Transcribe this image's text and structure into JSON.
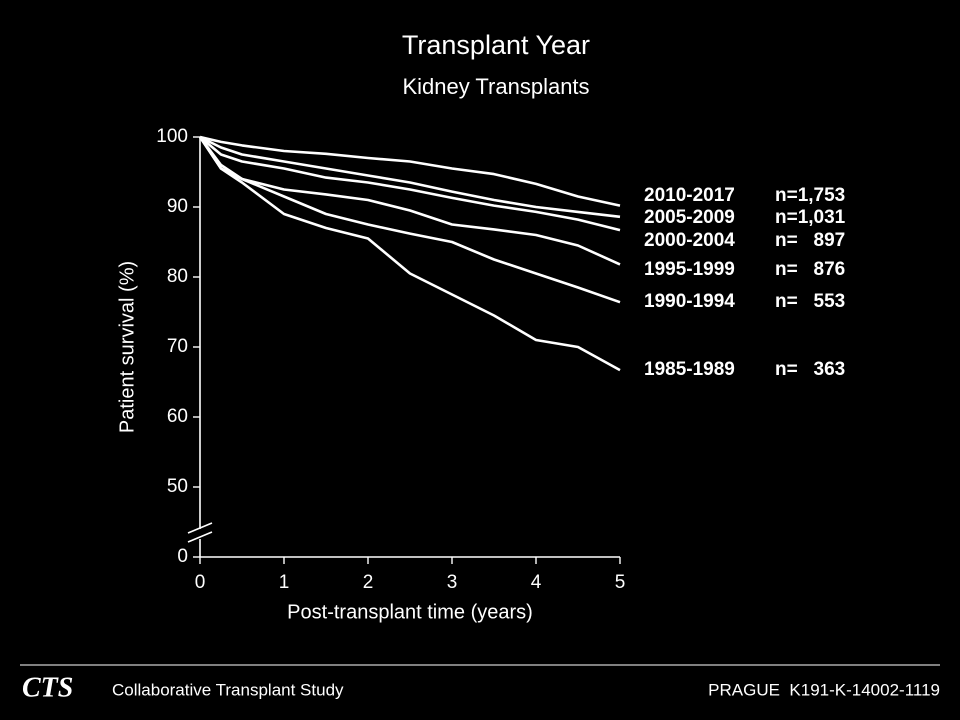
{
  "chart_data": {
    "type": "line",
    "title": "Transplant Year",
    "subtitle": "Kidney Transplants",
    "ylabel": "Patient survival (%)",
    "xlabel": "Post-transplant time (years)",
    "x": [
      0,
      0.25,
      0.5,
      1,
      1.5,
      2,
      2.5,
      3,
      3.5,
      4,
      4.5,
      5
    ],
    "xlim": [
      0,
      5
    ],
    "xticks": [
      0,
      1,
      2,
      3,
      4,
      5
    ],
    "ylim": [
      0,
      100
    ],
    "yticks": [
      0,
      50,
      60,
      70,
      80,
      90,
      100
    ],
    "ybreak": [
      0,
      50
    ],
    "series": [
      {
        "name": "2010-2017",
        "n": "n=1,753",
        "color": "#ffffff",
        "values": [
          100,
          99.3,
          98.8,
          98,
          97.6,
          97,
          96.5,
          95.5,
          94.7,
          93.3,
          91.5,
          90.2
        ]
      },
      {
        "name": "2005-2009",
        "n": "n=1,031",
        "color": "#ffffff",
        "values": [
          100,
          98.5,
          97.5,
          96.5,
          95.5,
          94.5,
          93.5,
          92.2,
          91,
          90,
          89.3,
          88.6
        ]
      },
      {
        "name": "2000-2004",
        "n": "n=   897",
        "color": "#ffffff",
        "values": [
          100,
          97.5,
          96.5,
          95.5,
          94.2,
          93.5,
          92.5,
          91.3,
          90.2,
          89.3,
          88.2,
          86.7
        ]
      },
      {
        "name": "1995-1999",
        "n": "n=   876",
        "color": "#ffffff",
        "values": [
          100,
          96,
          94,
          92.5,
          91.8,
          91,
          89.5,
          87.5,
          86.8,
          86,
          84.5,
          81.8
        ]
      },
      {
        "name": "1990-1994",
        "n": "n=   553",
        "color": "#ffffff",
        "values": [
          100,
          95.5,
          94,
          91.5,
          89,
          87.5,
          86.2,
          85,
          82.5,
          80.5,
          78.5,
          76.4
        ]
      },
      {
        "name": "1985-1989",
        "n": "n=   363",
        "color": "#ffffff",
        "values": [
          100,
          95.5,
          93.5,
          89,
          87,
          85.5,
          80.5,
          77.5,
          74.5,
          71,
          70,
          66.7
        ]
      }
    ]
  },
  "footer": {
    "logo": "CTS",
    "organization": "Collaborative Transplant Study",
    "reference": "PRAGUE  K191-K-14002-1119"
  }
}
